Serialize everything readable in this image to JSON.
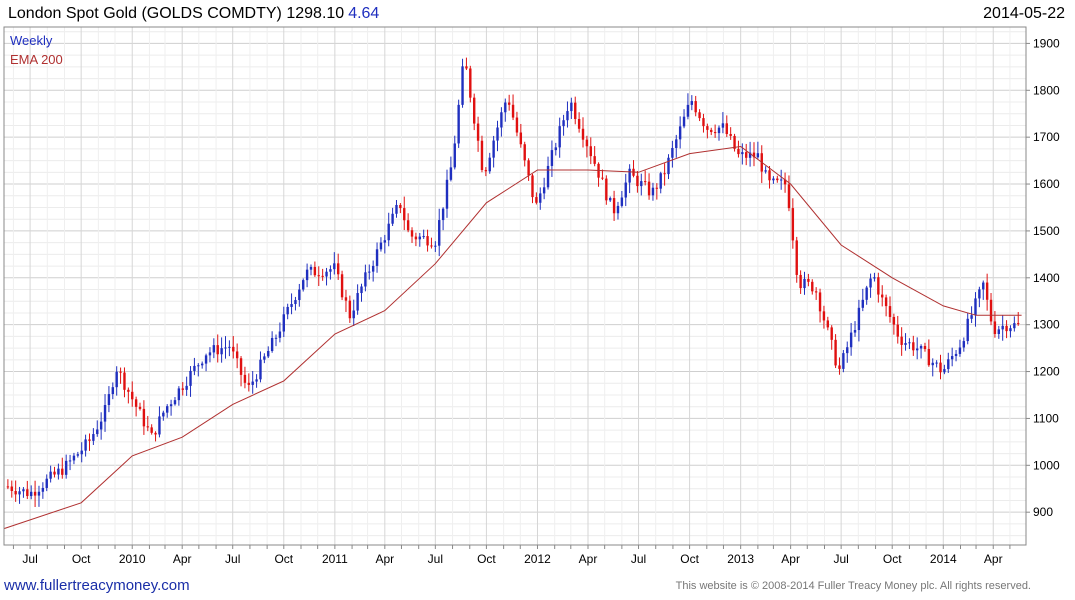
{
  "header": {
    "title": "London Spot Gold (GOLDS COMDTY)",
    "last": "1298.10",
    "change": "4.64",
    "date": "2014-05-22"
  },
  "legend": {
    "series1": "Weekly",
    "series2": "EMA 200"
  },
  "footer": {
    "site": "www.fullertreacymoney.com",
    "copyright": "This website is © 2008-2014 Fuller Treacy Money plc. All rights reserved."
  },
  "colors": {
    "up": "#1f2fbf",
    "down": "#e01010",
    "ema": "#b03030",
    "grid": "#e4e4e4",
    "frame": "#888888"
  },
  "chart_data": {
    "type": "line",
    "title": "London Spot Gold (GOLDS COMDTY)",
    "xlabel": "",
    "ylabel": "",
    "ylim": [
      830,
      1935
    ],
    "xlim": [
      "2009-05-15",
      "2014-05-30"
    ],
    "grid": true,
    "legend_position": "top-left",
    "y_ticks": [
      900,
      1000,
      1100,
      1200,
      1300,
      1400,
      1500,
      1600,
      1700,
      1800,
      1900
    ],
    "x_ticks": [
      {
        "label": "Jul",
        "date": "2009-07-01"
      },
      {
        "label": "Oct",
        "date": "2009-10-01"
      },
      {
        "label": "2010",
        "date": "2010-01-01"
      },
      {
        "label": "Apr",
        "date": "2010-04-01"
      },
      {
        "label": "Jul",
        "date": "2010-07-01"
      },
      {
        "label": "Oct",
        "date": "2010-10-01"
      },
      {
        "label": "2011",
        "date": "2011-01-01"
      },
      {
        "label": "Apr",
        "date": "2011-04-01"
      },
      {
        "label": "Jul",
        "date": "2011-07-01"
      },
      {
        "label": "Oct",
        "date": "2011-10-01"
      },
      {
        "label": "2012",
        "date": "2012-01-01"
      },
      {
        "label": "Apr",
        "date": "2012-04-01"
      },
      {
        "label": "Jul",
        "date": "2012-07-01"
      },
      {
        "label": "Oct",
        "date": "2012-10-01"
      },
      {
        "label": "2013",
        "date": "2013-01-01"
      },
      {
        "label": "Apr",
        "date": "2013-04-01"
      },
      {
        "label": "Jul",
        "date": "2013-07-01"
      },
      {
        "label": "Oct",
        "date": "2013-10-01"
      },
      {
        "label": "2014",
        "date": "2014-01-01"
      },
      {
        "label": "Apr",
        "date": "2014-04-01"
      }
    ],
    "series": [
      {
        "name": "Weekly",
        "kind": "close",
        "x": [
          "2009-05-22",
          "2009-07-01",
          "2009-09-01",
          "2009-10-15",
          "2009-11-15",
          "2009-12-03",
          "2010-02-05",
          "2010-03-01",
          "2010-05-14",
          "2010-06-25",
          "2010-07-28",
          "2010-09-15",
          "2010-11-09",
          "2010-12-31",
          "2011-01-28",
          "2011-03-01",
          "2011-04-28",
          "2011-05-15",
          "2011-07-01",
          "2011-08-01",
          "2011-08-22",
          "2011-09-26",
          "2011-10-10",
          "2011-11-08",
          "2011-12-29",
          "2012-02-28",
          "2012-04-15",
          "2012-05-16",
          "2012-06-15",
          "2012-07-25",
          "2012-08-15",
          "2012-10-04",
          "2012-11-01",
          "2012-12-01",
          "2012-12-28",
          "2013-02-01",
          "2013-02-20",
          "2013-03-25",
          "2013-04-15",
          "2013-05-15",
          "2013-06-27",
          "2013-08-27",
          "2013-09-10",
          "2013-10-15",
          "2013-11-15",
          "2013-12-31",
          "2014-02-01",
          "2014-03-14",
          "2014-04-01",
          "2014-04-25",
          "2014-05-22"
        ],
        "values": [
          955,
          940,
          995,
          1050,
          1120,
          1210,
          1060,
          1120,
          1240,
          1255,
          1160,
          1270,
          1410,
          1420,
          1320,
          1410,
          1560,
          1490,
          1480,
          1650,
          1870,
          1620,
          1680,
          1790,
          1550,
          1780,
          1640,
          1540,
          1620,
          1580,
          1620,
          1780,
          1720,
          1720,
          1660,
          1660,
          1600,
          1600,
          1390,
          1380,
          1200,
          1410,
          1360,
          1270,
          1250,
          1200,
          1260,
          1385,
          1290,
          1300,
          1298
        ]
      },
      {
        "name": "EMA 200",
        "kind": "ema",
        "x": [
          "2009-05-15",
          "2009-10-01",
          "2010-01-01",
          "2010-04-01",
          "2010-07-01",
          "2010-10-01",
          "2011-01-01",
          "2011-04-01",
          "2011-07-01",
          "2011-10-01",
          "2012-01-01",
          "2012-04-01",
          "2012-07-01",
          "2012-10-01",
          "2013-01-01",
          "2013-04-01",
          "2013-07-01",
          "2013-10-01",
          "2014-01-01",
          "2014-03-01",
          "2014-05-22"
        ],
        "values": [
          865,
          920,
          1020,
          1060,
          1130,
          1180,
          1280,
          1330,
          1430,
          1560,
          1630,
          1630,
          1625,
          1665,
          1680,
          1600,
          1470,
          1400,
          1340,
          1320,
          1320
        ]
      }
    ]
  }
}
